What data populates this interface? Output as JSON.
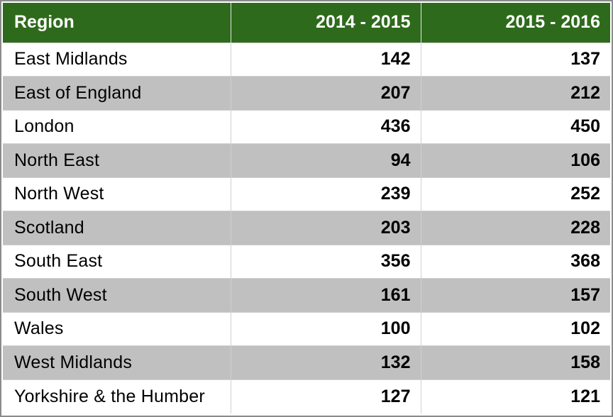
{
  "table": {
    "headers": [
      "Region",
      "2014 - 2015",
      "2015 - 2016"
    ],
    "rows": [
      {
        "region": "East Midlands",
        "y2014_2015": "142",
        "y2015_2016": "137"
      },
      {
        "region": "East of England",
        "y2014_2015": "207",
        "y2015_2016": "212"
      },
      {
        "region": "London",
        "y2014_2015": "436",
        "y2015_2016": "450"
      },
      {
        "region": "North East",
        "y2014_2015": "94",
        "y2015_2016": "106"
      },
      {
        "region": "North West",
        "y2014_2015": "239",
        "y2015_2016": "252"
      },
      {
        "region": "Scotland",
        "y2014_2015": "203",
        "y2015_2016": "228"
      },
      {
        "region": "South East",
        "y2014_2015": "356",
        "y2015_2016": "368"
      },
      {
        "region": "South West",
        "y2014_2015": "161",
        "y2015_2016": "157"
      },
      {
        "region": "Wales",
        "y2014_2015": "100",
        "y2015_2016": "102"
      },
      {
        "region": "West Midlands",
        "y2014_2015": "132",
        "y2015_2016": "158"
      },
      {
        "region": "Yorkshire & the Humber",
        "y2014_2015": "127",
        "y2015_2016": "121"
      }
    ]
  },
  "colors": {
    "header_bg": "#2e6a1c",
    "header_text": "#ffffff",
    "stripe": "#c0c0c0"
  }
}
